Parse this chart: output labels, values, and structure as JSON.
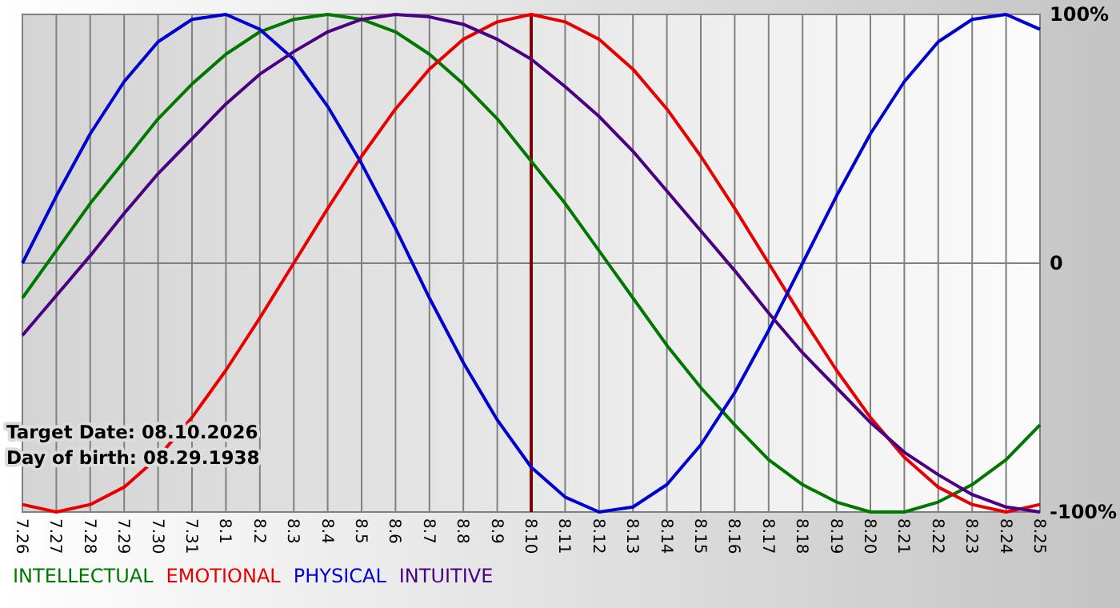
{
  "chart_data": {
    "type": "line",
    "categories": [
      "7.26",
      "7.27",
      "7.28",
      "7.29",
      "7.30",
      "7.31",
      "8.1",
      "8.2",
      "8.3",
      "8.4",
      "8.5",
      "8.6",
      "8.7",
      "8.8",
      "8.9",
      "8.10",
      "8.11",
      "8.12",
      "8.13",
      "8.14",
      "8.15",
      "8.16",
      "8.17",
      "8.18",
      "8.19",
      "8.20",
      "8.21",
      "8.22",
      "8.23",
      "8.24",
      "8.25"
    ],
    "series": [
      {
        "name": "INTELLECTUAL",
        "color": "#007800",
        "values": [
          -14,
          5,
          24,
          41,
          58,
          72,
          84,
          93,
          98,
          100,
          98,
          93,
          84,
          72,
          58,
          41,
          24,
          5,
          -14,
          -33,
          -50,
          -65,
          -79,
          -89,
          -96,
          -100,
          -100,
          -96,
          -89,
          -79,
          -65
        ]
      },
      {
        "name": "EMOTIONAL",
        "color": "#e80000",
        "values": [
          -97,
          -100,
          -97,
          -90,
          -78,
          -62,
          -43,
          -22,
          0,
          22,
          43,
          62,
          78,
          90,
          97,
          100,
          97,
          90,
          78,
          62,
          43,
          22,
          0,
          -22,
          -43,
          -62,
          -78,
          -90,
          -97,
          -100,
          -97
        ]
      },
      {
        "name": "PHYSICAL",
        "color": "#0000d0",
        "values": [
          0,
          27,
          52,
          73,
          89,
          98,
          100,
          94,
          82,
          63,
          40,
          14,
          -14,
          -40,
          -63,
          -82,
          -94,
          -100,
          -98,
          -89,
          -73,
          -52,
          -27,
          0,
          27,
          52,
          73,
          89,
          98,
          100,
          94
        ]
      },
      {
        "name": "INTUITIVE",
        "color": "#4b0082",
        "values": [
          -29,
          -13,
          3,
          20,
          36,
          50,
          64,
          76,
          85,
          93,
          98,
          100,
          99,
          96,
          90,
          82,
          71,
          59,
          45,
          29,
          13,
          -3,
          -20,
          -36,
          -50,
          -64,
          -76,
          -85,
          -93,
          -98,
          -100
        ]
      }
    ],
    "ylim": [
      -100,
      100
    ],
    "yticks": [
      {
        "value": 100,
        "label": "100%"
      },
      0,
      {
        "value": -100,
        "label": "-100%"
      }
    ],
    "grid": true,
    "legend": "bottom left",
    "marker": "none",
    "line_style": "solid",
    "ref_lines": [
      {
        "axis": "x",
        "value": "8.10",
        "color": "#800000"
      }
    ],
    "annotations": [
      "Target Date: 08.10.2026",
      "Day of birth: 08.29.1938"
    ]
  }
}
